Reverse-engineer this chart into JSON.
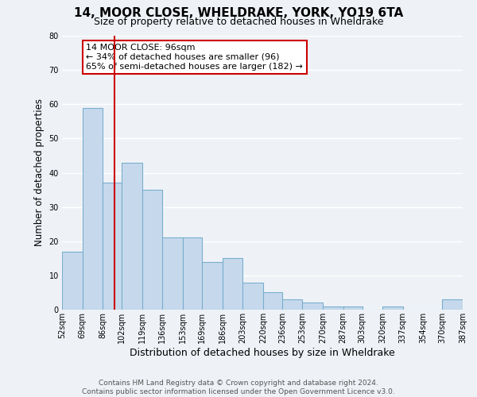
{
  "title": "14, MOOR CLOSE, WHELDRAKE, YORK, YO19 6TA",
  "subtitle": "Size of property relative to detached houses in Wheldrake",
  "xlabel": "Distribution of detached houses by size in Wheldrake",
  "ylabel": "Number of detached properties",
  "bar_color": "#c6d9ec",
  "bar_edge_color": "#7aaece",
  "background_color": "#eef2f7",
  "grid_color": "#ffffff",
  "annotation_text": "14 MOOR CLOSE: 96sqm\n← 34% of detached houses are smaller (96)\n65% of semi-detached houses are larger (182) →",
  "vline_x": 96,
  "vline_color": "#cc0000",
  "bin_edges": [
    52,
    69,
    86,
    102,
    119,
    136,
    153,
    169,
    186,
    203,
    220,
    236,
    253,
    270,
    287,
    303,
    320,
    337,
    354,
    370,
    387
  ],
  "bin_labels": [
    "52sqm",
    "69sqm",
    "86sqm",
    "102sqm",
    "119sqm",
    "136sqm",
    "153sqm",
    "169sqm",
    "186sqm",
    "203sqm",
    "220sqm",
    "236sqm",
    "253sqm",
    "270sqm",
    "287sqm",
    "303sqm",
    "320sqm",
    "337sqm",
    "354sqm",
    "370sqm",
    "387sqm"
  ],
  "bar_heights": [
    17,
    59,
    37,
    43,
    35,
    21,
    21,
    14,
    15,
    8,
    5,
    3,
    2,
    1,
    1,
    0,
    1,
    0,
    0,
    3
  ],
  "ylim": [
    0,
    80
  ],
  "yticks": [
    0,
    10,
    20,
    30,
    40,
    50,
    60,
    70,
    80
  ],
  "footer_text": "Contains HM Land Registry data © Crown copyright and database right 2024.\nContains public sector information licensed under the Open Government Licence v3.0.",
  "annotation_box_facecolor": "#ffffff",
  "annotation_box_edgecolor": "#cc0000",
  "title_fontsize": 11,
  "subtitle_fontsize": 9,
  "ylabel_fontsize": 8.5,
  "xlabel_fontsize": 9,
  "tick_fontsize": 7,
  "footer_fontsize": 6.5,
  "annot_fontsize": 8
}
